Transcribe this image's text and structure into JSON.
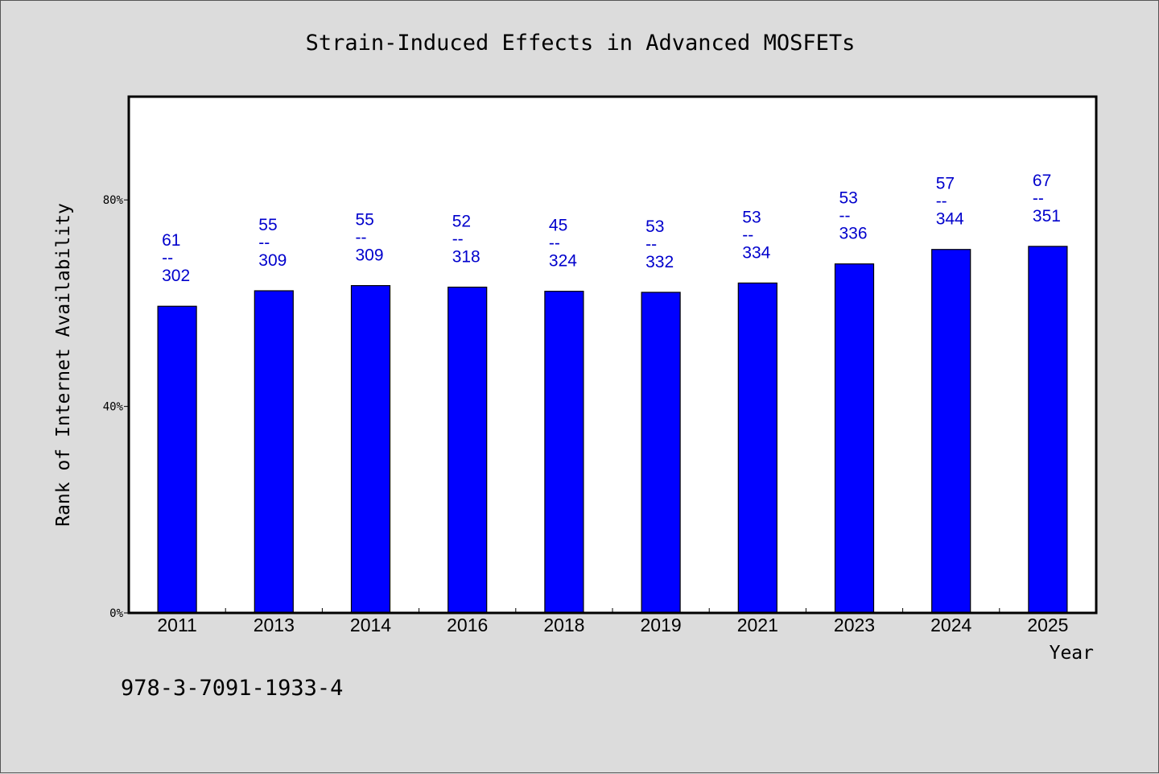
{
  "chart_data": {
    "type": "bar",
    "title": "Strain-Induced Effects in Advanced MOSFETs",
    "xlabel": "Year",
    "ylabel": "Rank of Internet Availability",
    "footer_text": "978-3-7091-1933-4",
    "categories": [
      "2011",
      "2013",
      "2014",
      "2016",
      "2018",
      "2019",
      "2021",
      "2023",
      "2024",
      "2025"
    ],
    "values": [
      59.4,
      62.4,
      63.4,
      63.1,
      62.3,
      62.1,
      63.9,
      67.6,
      70.4,
      71.0
    ],
    "bar_labels": [
      {
        "top": "61",
        "sep": "--",
        "bottom": "302"
      },
      {
        "top": "55",
        "sep": "--",
        "bottom": "309"
      },
      {
        "top": "55",
        "sep": "--",
        "bottom": "309"
      },
      {
        "top": "52",
        "sep": "--",
        "bottom": "318"
      },
      {
        "top": "45",
        "sep": "--",
        "bottom": "324"
      },
      {
        "top": "53",
        "sep": "--",
        "bottom": "332"
      },
      {
        "top": "53",
        "sep": "--",
        "bottom": "334"
      },
      {
        "top": "53",
        "sep": "--",
        "bottom": "336"
      },
      {
        "top": "57",
        "sep": "--",
        "bottom": "344"
      },
      {
        "top": "67",
        "sep": "--",
        "bottom": "351"
      }
    ],
    "y_ticks": [
      0,
      40,
      80
    ],
    "y_tick_labels": [
      "0%",
      "40%",
      "80%"
    ],
    "ylim": [
      0,
      100
    ],
    "grid": false,
    "legend": "none",
    "colors": {
      "bar": "#0000ff",
      "label_text": "#0000cc",
      "page_background": "#dcdcdc",
      "plot_background": "#ffffff",
      "text": "#000000"
    }
  }
}
